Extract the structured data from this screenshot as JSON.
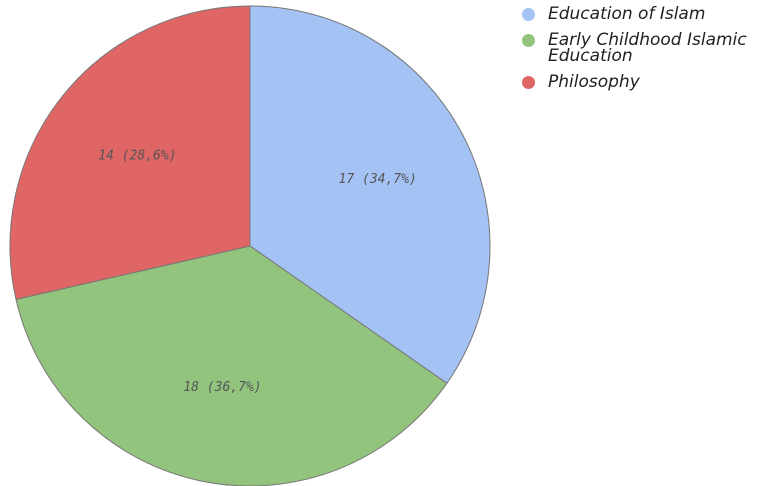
{
  "chart_data": {
    "type": "pie",
    "categories": [
      "Education of Islam",
      "Early Childhood Islamic Education",
      "Philosophy"
    ],
    "values": [
      17,
      18,
      14
    ],
    "value_labels": [
      "17 (34,7%)",
      "18 (36,7%)",
      "14 (28,6%)"
    ],
    "colors": [
      "#a4c2f4",
      "#93c47d",
      "#e06666"
    ],
    "legend": "right"
  }
}
